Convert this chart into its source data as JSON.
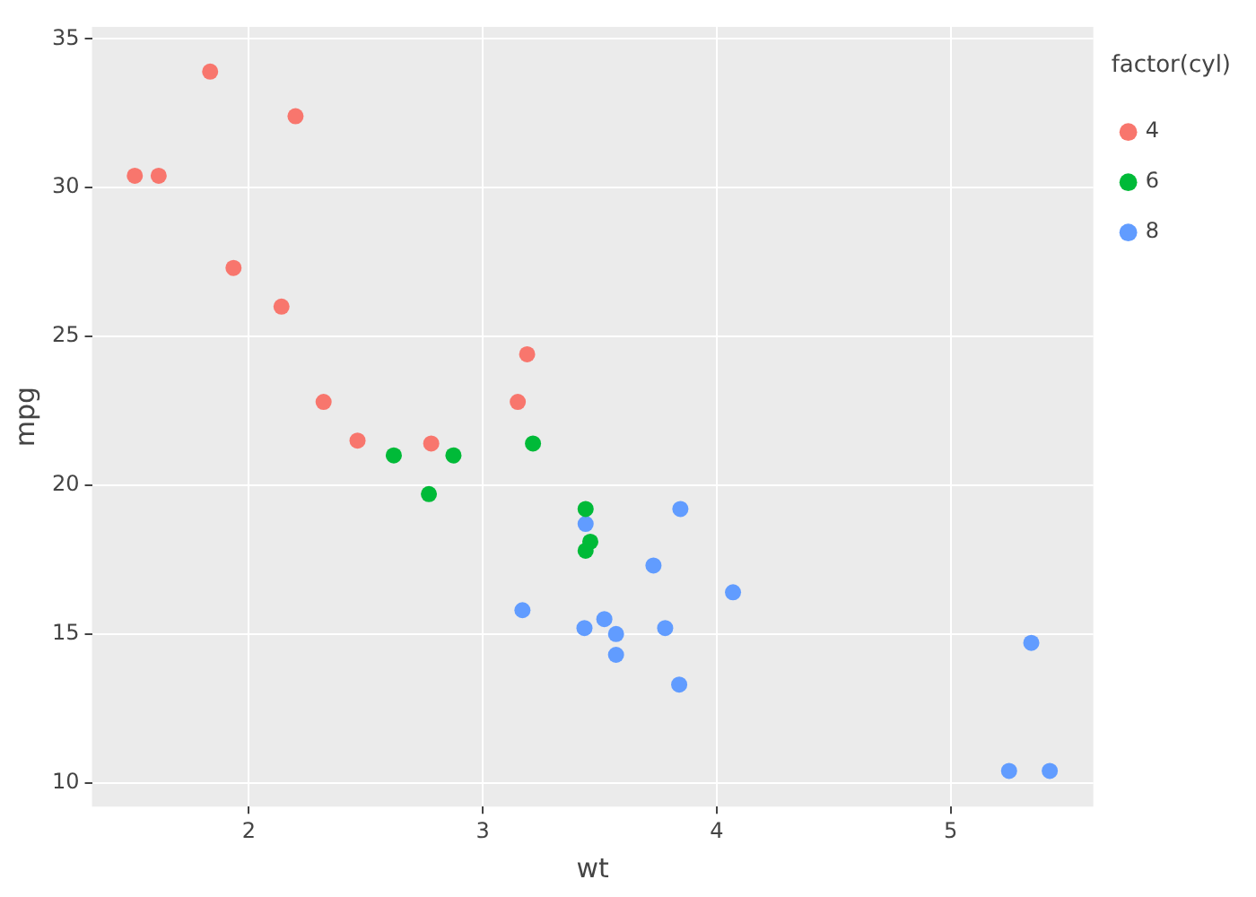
{
  "chart_data": {
    "type": "scatter",
    "xlabel": "wt",
    "ylabel": "mpg",
    "legend_title": "factor(cyl)",
    "legend": "right",
    "grid": true,
    "marker": "circle",
    "xlim": [
      1.33,
      5.61
    ],
    "xticks": [
      2,
      3,
      4,
      5
    ],
    "ylim": [
      9.2,
      35.4
    ],
    "yticks": [
      10,
      15,
      20,
      25,
      30,
      35
    ],
    "series": [
      {
        "name": "4",
        "color": "#f8766d",
        "x": [
          2.32,
          3.19,
          3.15,
          2.2,
          1.615,
          1.835,
          2.465,
          1.935,
          2.14,
          1.513,
          2.78
        ],
        "values": [
          22.8,
          24.4,
          22.8,
          32.4,
          30.4,
          33.9,
          21.5,
          27.3,
          26.0,
          30.4,
          21.4
        ]
      },
      {
        "name": "6",
        "color": "#00ba38",
        "x": [
          2.62,
          2.875,
          3.215,
          3.46,
          3.44,
          3.44,
          2.77
        ],
        "values": [
          21.0,
          21.0,
          21.4,
          18.1,
          19.2,
          17.8,
          19.7
        ]
      },
      {
        "name": "8",
        "color": "#619cff",
        "x": [
          3.44,
          3.57,
          4.07,
          3.73,
          3.78,
          5.25,
          5.424,
          5.345,
          3.52,
          3.435,
          3.84,
          3.845,
          3.17,
          3.57
        ],
        "values": [
          18.7,
          14.3,
          16.4,
          17.3,
          15.2,
          10.4,
          10.4,
          14.7,
          15.5,
          15.2,
          13.3,
          19.2,
          15.8,
          15.0
        ]
      }
    ]
  }
}
